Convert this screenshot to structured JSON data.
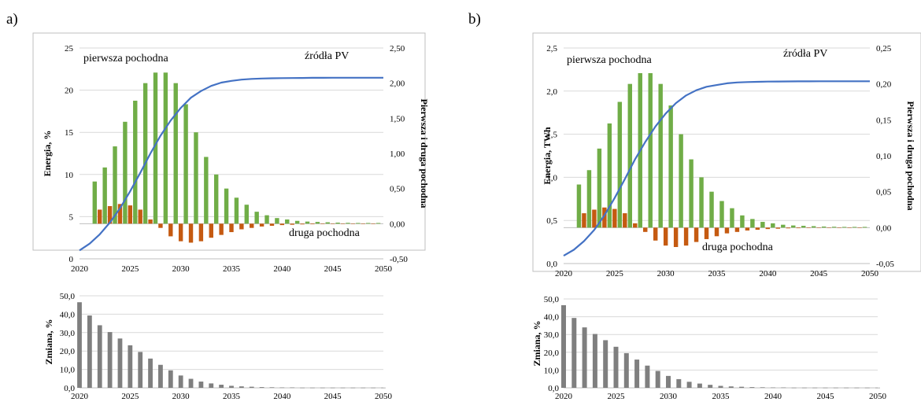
{
  "panels": [
    {
      "letter": "a)",
      "main": {
        "type": "bar+line",
        "ylabel_left": "Energia, %",
        "ylabel_right": "Pierwsza i druga pochodna",
        "annotations": {
          "first": "pierwsza pochodna",
          "pv": "źródła PV",
          "second": "druga pochodna"
        },
        "xlim": [
          2020,
          2050
        ],
        "x_ticks": [
          "2020",
          "2025",
          "2030",
          "2035",
          "2040",
          "2045",
          "2050"
        ],
        "ylim_left": [
          0,
          25
        ],
        "y_ticks_left": [
          "0",
          "5",
          "10",
          "15",
          "20",
          "25"
        ],
        "ylim_right": [
          -0.5,
          2.5
        ],
        "y_ticks_right": [
          "-0,50",
          "0,00",
          "0,50",
          "1,00",
          "1,50",
          "2,00",
          "2,50"
        ]
      },
      "sub": {
        "type": "bar",
        "ylabel": "Zmiana, %",
        "xlim": [
          2020,
          2050
        ],
        "x_ticks": [
          "2020",
          "2025",
          "2030",
          "2035",
          "2040",
          "2045",
          "2050"
        ],
        "ylim": [
          0,
          50
        ],
        "y_ticks": [
          "0,0",
          "10,0",
          "20,0",
          "30,0",
          "40,0",
          "50,0"
        ]
      }
    },
    {
      "letter": "b)",
      "main": {
        "type": "bar+line",
        "ylabel_left": "Energia, TWh",
        "ylabel_right": "Pierwsza i druga pochodna",
        "annotations": {
          "first": "pierwsza pochodna",
          "pv": "źródła PV",
          "second": "druga pochodna"
        },
        "xlim": [
          2020,
          2050
        ],
        "x_ticks": [
          "2020",
          "2025",
          "2030",
          "2035",
          "2040",
          "2045",
          "2050"
        ],
        "ylim_left": [
          0,
          2.5
        ],
        "y_ticks_left": [
          "0,0",
          "0,5",
          "1,0",
          "1,5",
          "2,0",
          "2,5"
        ],
        "ylim_right": [
          -0.05,
          0.25
        ],
        "y_ticks_right": [
          "-0,05",
          "0,00",
          "0,05",
          "0,10",
          "0,15",
          "0,20",
          "0,25"
        ]
      },
      "sub": {
        "type": "bar",
        "ylabel": "Zmiana, %",
        "xlim": [
          2020,
          2050
        ],
        "x_ticks": [
          "2020",
          "2025",
          "2030",
          "2035",
          "2040",
          "2045",
          "2050"
        ],
        "ylim": [
          0,
          50
        ],
        "y_ticks": [
          "0,0",
          "10,0",
          "20,0",
          "30,0",
          "40,0",
          "50,0"
        ]
      }
    }
  ],
  "chart_data": [
    {
      "panel": "a",
      "type": "bar+line",
      "line_color": "#4472C4",
      "first_derivative_color": "#70AD47",
      "second_derivative_color": "#C55A11",
      "energy_pct": {
        "x": [
          2020,
          2021,
          2022,
          2023,
          2024,
          2025,
          2026,
          2027,
          2028,
          2029,
          2030,
          2031,
          2032,
          2033,
          2034,
          2035,
          2036,
          2037,
          2038,
          2039,
          2040,
          2041,
          2042,
          2043,
          2044,
          2045,
          2046,
          2047,
          2048,
          2049,
          2050
        ],
        "y": [
          1.0,
          1.8,
          2.9,
          4.3,
          6.0,
          8.0,
          10.2,
          12.5,
          14.6,
          16.4,
          17.9,
          19.1,
          19.9,
          20.5,
          20.9,
          21.1,
          21.25,
          21.33,
          21.38,
          21.41,
          21.43,
          21.44,
          21.45,
          21.46,
          21.46,
          21.47,
          21.47,
          21.47,
          21.47,
          21.47,
          21.47
        ]
      },
      "first_derivative": {
        "x": [
          2021.5,
          2022.5,
          2023.5,
          2024.5,
          2025.5,
          2026.5,
          2027.5,
          2028.5,
          2029.5,
          2030.5,
          2031.5,
          2032.5,
          2033.5,
          2034.5,
          2035.5,
          2036.5,
          2037.5,
          2038.5,
          2039.5,
          2040.5,
          2041.5,
          2042.5,
          2043.5,
          2044.5,
          2045.5,
          2046.5,
          2047.5,
          2048.5,
          2049.5
        ],
        "y": [
          0.6,
          0.8,
          1.1,
          1.45,
          1.75,
          2.0,
          2.15,
          2.15,
          2.0,
          1.7,
          1.3,
          0.95,
          0.7,
          0.5,
          0.37,
          0.27,
          0.17,
          0.12,
          0.08,
          0.06,
          0.04,
          0.03,
          0.025,
          0.02,
          0.015,
          0.012,
          0.01,
          0.01,
          0.01
        ]
      },
      "second_derivative": {
        "x": [
          2022,
          2023,
          2024,
          2025,
          2026,
          2027,
          2028,
          2029,
          2030,
          2031,
          2032,
          2033,
          2034,
          2035,
          2036,
          2037,
          2038,
          2039,
          2040,
          2041,
          2042,
          2043,
          2044,
          2045,
          2046,
          2047,
          2048,
          2049
        ],
        "y": [
          0.2,
          0.25,
          0.28,
          0.26,
          0.2,
          0.06,
          -0.06,
          -0.18,
          -0.25,
          -0.27,
          -0.25,
          -0.2,
          -0.16,
          -0.12,
          -0.08,
          -0.06,
          -0.04,
          -0.03,
          -0.02,
          -0.015,
          -0.01,
          -0.008,
          -0.006,
          -0.005,
          -0.004,
          -0.003,
          -0.003,
          -0.002
        ]
      }
    },
    {
      "panel": "a",
      "type": "bar",
      "bar_color": "#7F7F7F",
      "x": [
        2020,
        2021,
        2022,
        2023,
        2024,
        2025,
        2026,
        2027,
        2028,
        2029,
        2030,
        2031,
        2032,
        2033,
        2034,
        2035,
        2036,
        2037,
        2038,
        2039,
        2040,
        2041,
        2042,
        2043,
        2044,
        2045,
        2046,
        2047,
        2048,
        2049,
        2050
      ],
      "y": [
        46.5,
        39.3,
        34.0,
        30.3,
        26.8,
        23.1,
        19.5,
        15.9,
        12.5,
        9.5,
        6.7,
        4.9,
        3.4,
        2.4,
        1.7,
        1.1,
        0.8,
        0.6,
        0.4,
        0.3,
        0.2,
        0.2,
        0.1,
        0.1,
        0.1,
        0.1,
        0.1,
        0.1,
        0.1,
        0.1,
        0.1
      ]
    },
    {
      "panel": "b",
      "type": "bar+line",
      "line_color": "#4472C4",
      "first_derivative_color": "#70AD47",
      "second_derivative_color": "#C55A11",
      "energy_twh": {
        "x": [
          2020,
          2021,
          2022,
          2023,
          2024,
          2025,
          2026,
          2027,
          2028,
          2029,
          2030,
          2031,
          2032,
          2033,
          2034,
          2035,
          2036,
          2037,
          2038,
          2039,
          2040,
          2041,
          2042,
          2043,
          2044,
          2045,
          2046,
          2047,
          2048,
          2049,
          2050
        ],
        "y": [
          0.09,
          0.16,
          0.26,
          0.39,
          0.56,
          0.76,
          0.98,
          1.21,
          1.41,
          1.59,
          1.74,
          1.86,
          1.95,
          2.01,
          2.05,
          2.07,
          2.09,
          2.1,
          2.105,
          2.108,
          2.11,
          2.111,
          2.112,
          2.113,
          2.113,
          2.114,
          2.114,
          2.114,
          2.114,
          2.114,
          2.114
        ]
      },
      "first_derivative": {
        "x": [
          2021.5,
          2022.5,
          2023.5,
          2024.5,
          2025.5,
          2026.5,
          2027.5,
          2028.5,
          2029.5,
          2030.5,
          2031.5,
          2032.5,
          2033.5,
          2034.5,
          2035.5,
          2036.5,
          2037.5,
          2038.5,
          2039.5,
          2040.5,
          2041.5,
          2042.5,
          2043.5,
          2044.5,
          2045.5,
          2046.5,
          2047.5,
          2048.5,
          2049.5
        ],
        "y": [
          0.06,
          0.08,
          0.11,
          0.145,
          0.175,
          0.2,
          0.215,
          0.215,
          0.2,
          0.17,
          0.13,
          0.095,
          0.07,
          0.05,
          0.037,
          0.027,
          0.017,
          0.012,
          0.008,
          0.006,
          0.004,
          0.003,
          0.0025,
          0.002,
          0.0015,
          0.0012,
          0.001,
          0.001,
          0.001
        ]
      },
      "second_derivative": {
        "x": [
          2022,
          2023,
          2024,
          2025,
          2026,
          2027,
          2028,
          2029,
          2030,
          2031,
          2032,
          2033,
          2034,
          2035,
          2036,
          2037,
          2038,
          2039,
          2040,
          2041,
          2042,
          2043,
          2044,
          2045,
          2046,
          2047,
          2048,
          2049
        ],
        "y": [
          0.02,
          0.025,
          0.028,
          0.026,
          0.02,
          0.006,
          -0.006,
          -0.018,
          -0.025,
          -0.027,
          -0.025,
          -0.02,
          -0.016,
          -0.012,
          -0.008,
          -0.006,
          -0.004,
          -0.003,
          -0.002,
          -0.0015,
          -0.001,
          -0.0008,
          -0.0006,
          -0.0005,
          -0.0004,
          -0.0003,
          -0.0003,
          -0.0002
        ]
      }
    },
    {
      "panel": "b",
      "type": "bar",
      "bar_color": "#7F7F7F",
      "x": [
        2020,
        2021,
        2022,
        2023,
        2024,
        2025,
        2026,
        2027,
        2028,
        2029,
        2030,
        2031,
        2032,
        2033,
        2034,
        2035,
        2036,
        2037,
        2038,
        2039,
        2040,
        2041,
        2042,
        2043,
        2044,
        2045,
        2046,
        2047,
        2048,
        2049,
        2050
      ],
      "y": [
        46.5,
        39.3,
        34.0,
        30.3,
        26.8,
        23.1,
        19.5,
        15.9,
        12.5,
        9.5,
        6.7,
        4.9,
        3.4,
        2.4,
        1.7,
        1.1,
        0.8,
        0.6,
        0.4,
        0.3,
        0.2,
        0.2,
        0.1,
        0.1,
        0.1,
        0.1,
        0.1,
        0.1,
        0.1,
        0.1,
        0.1
      ]
    }
  ]
}
